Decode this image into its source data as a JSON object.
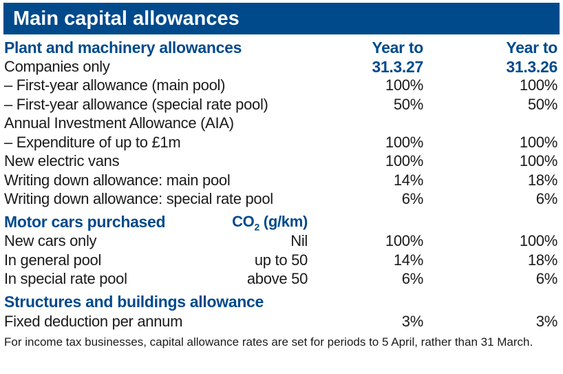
{
  "title": "Main capital allowances",
  "plant": {
    "heading": "Plant and machinery allowances",
    "col1_line1": "Year to",
    "col1_line2": "31.3.27",
    "col2_line1": "Year to",
    "col2_line2": "31.3.26",
    "rows": [
      {
        "label": "Companies only",
        "v1": "",
        "v2": ""
      },
      {
        "label": "– First-year allowance (main pool)",
        "v1": "100%",
        "v2": "100%"
      },
      {
        "label": "– First-year allowance (special rate pool)",
        "v1": "50%",
        "v2": "50%"
      },
      {
        "label": "Annual Investment Allowance (AIA)",
        "v1": "",
        "v2": ""
      },
      {
        "label": "– Expenditure of up to £1m",
        "v1": "100%",
        "v2": "100%"
      },
      {
        "label": "New electric vans",
        "v1": "100%",
        "v2": "100%"
      },
      {
        "label": "Writing down allowance: main pool",
        "v1": "14%",
        "v2": "18%"
      },
      {
        "label": "Writing down allowance: special rate pool",
        "v1": "6%",
        "v2": "6%"
      }
    ]
  },
  "cars": {
    "heading": "Motor cars purchased",
    "co2_label": "CO",
    "co2_sub": "2",
    "co2_unit": " (g/km)",
    "rows": [
      {
        "label": "New cars only",
        "co2": "Nil",
        "v1": "100%",
        "v2": "100%"
      },
      {
        "label": "In general pool",
        "co2": "up to 50",
        "v1": "14%",
        "v2": "18%"
      },
      {
        "label": "In special rate pool",
        "co2": "above 50",
        "v1": "6%",
        "v2": "6%"
      }
    ]
  },
  "structures": {
    "heading": "Structures and buildings allowance",
    "rows": [
      {
        "label": "Fixed deduction per annum",
        "v1": "3%",
        "v2": "3%"
      }
    ]
  },
  "footnote": "For income tax businesses, capital allowance rates are set for periods to 5 April, rather than 31 March."
}
